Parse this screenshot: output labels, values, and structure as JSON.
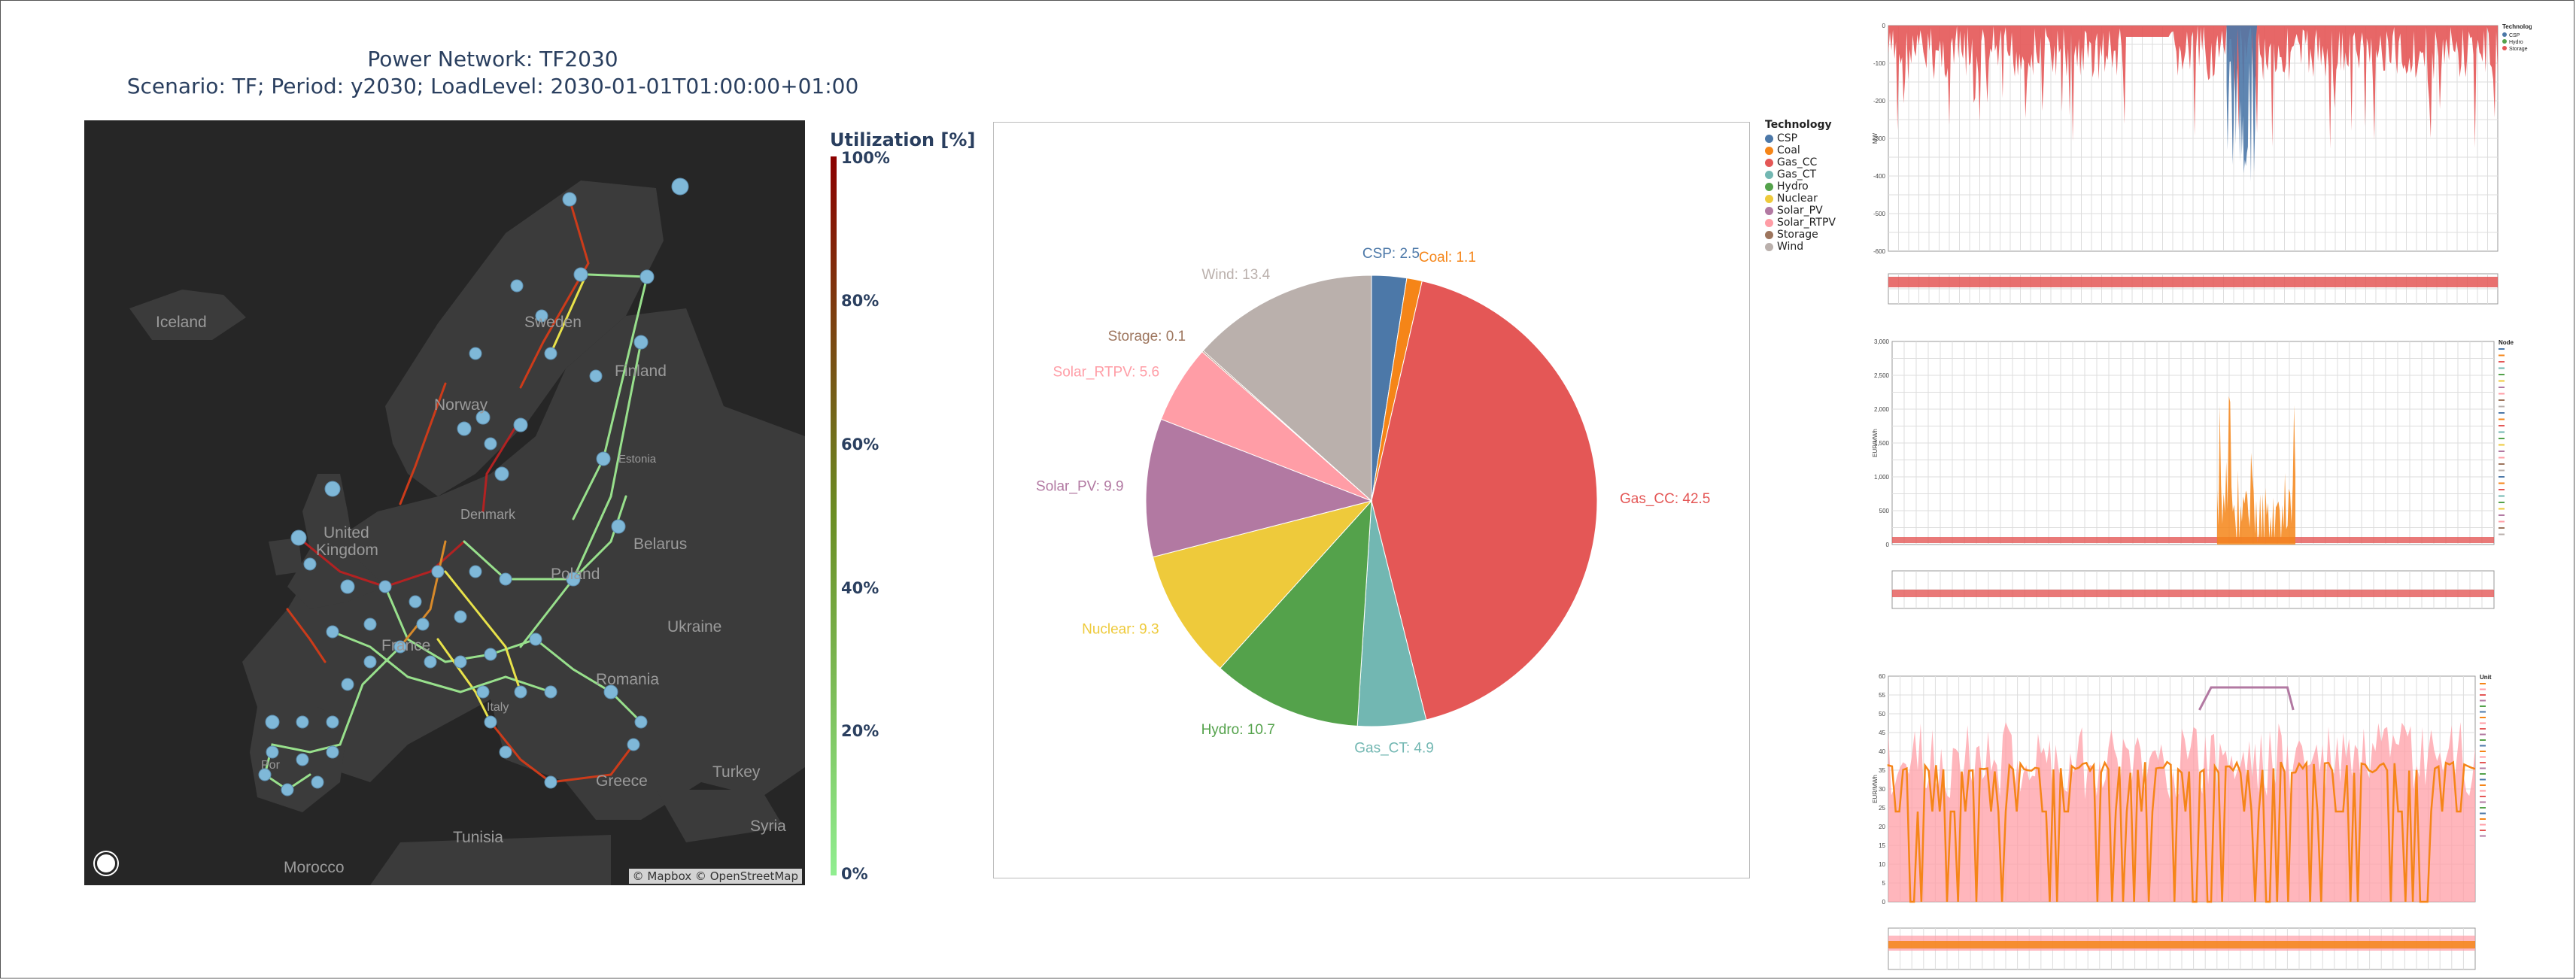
{
  "header": {
    "title_line1": "Power Network: TF2030",
    "title_line2": "Scenario: TF; Period: y2030; LoadLevel: 2030-01-01T01:00:00+01:00"
  },
  "map": {
    "attribution": "© Mapbox © OpenStreetMap",
    "labels": [
      {
        "id": "iceland",
        "text": "Iceland"
      },
      {
        "id": "sweden",
        "text": "Sweden"
      },
      {
        "id": "finland",
        "text": "Finland"
      },
      {
        "id": "norway",
        "text": "Norway"
      },
      {
        "id": "estonia",
        "text": "Estonia"
      },
      {
        "id": "denmark",
        "text": "Denmark"
      },
      {
        "id": "united",
        "text": "United"
      },
      {
        "id": "kingdom",
        "text": "Kingdom"
      },
      {
        "id": "belarus",
        "text": "Belarus"
      },
      {
        "id": "poland",
        "text": "Poland"
      },
      {
        "id": "ukraine",
        "text": "Ukraine"
      },
      {
        "id": "france",
        "text": "France"
      },
      {
        "id": "romania",
        "text": "Romania"
      },
      {
        "id": "portugal",
        "text": "Por"
      },
      {
        "id": "italy",
        "text": "Italy"
      },
      {
        "id": "turkey",
        "text": "Turkey"
      },
      {
        "id": "greece",
        "text": "Greece"
      },
      {
        "id": "tunisia",
        "text": "Tunisia"
      },
      {
        "id": "syria",
        "text": "Syria"
      },
      {
        "id": "morocco",
        "text": "Morocco"
      }
    ]
  },
  "colorbar": {
    "title": "Utilization [%]",
    "ticks": [
      "100%",
      "80%",
      "60%",
      "40%",
      "20%",
      "0%"
    ],
    "color_low": "#90ee90",
    "color_mid": "#6b8e23",
    "color_high": "#8b0000"
  },
  "chart_data": [
    {
      "type": "pie",
      "categories": [
        "CSP",
        "Coal",
        "Gas_CC",
        "Gas_CT",
        "Hydro",
        "Nuclear",
        "Solar_PV",
        "Solar_RTPV",
        "Storage",
        "Wind"
      ],
      "values": [
        2.5,
        1.1,
        42.5,
        4.9,
        10.7,
        9.3,
        9.9,
        5.6,
        0.1,
        13.4
      ],
      "labels": [
        "CSP: 2.5",
        "Coal: 1.1",
        "Gas_CC: 42.5",
        "Gas_CT: 4.9",
        "Hydro: 10.7",
        "Nuclear: 9.3",
        "Solar_PV: 9.9",
        "Solar_RTPV: 5.6",
        "Storage: 0.1",
        "Wind: 13.4"
      ],
      "colors": [
        "#4c78a8",
        "#f58518",
        "#e45756",
        "#72b7b2",
        "#54a24b",
        "#eeca3b",
        "#b279a2",
        "#ff9da6",
        "#9d755d",
        "#bab0ac"
      ],
      "legend_title": "Technology"
    },
    {
      "type": "area",
      "legend_title": "Technology",
      "legend": [
        "CSP",
        "Hydro",
        "Storage"
      ],
      "colors": [
        "#4c78a8",
        "#54a24b",
        "#e45756"
      ],
      "ylabel": "MW",
      "ylim": [
        -600,
        0
      ],
      "yticks": [
        "0",
        "-100",
        "-200",
        "-300",
        "-400",
        "-500",
        "-600"
      ]
    },
    {
      "type": "area",
      "legend_title": "Node",
      "ylabel": "EUR/MWh",
      "ylim": [
        0,
        3000
      ],
      "yticks": [
        "3,000",
        "2,500",
        "2,000",
        "1,500",
        "1,000",
        "500",
        "0"
      ]
    },
    {
      "type": "line",
      "legend_title": "Unit",
      "ylabel": "EUR/MWh",
      "ylim": [
        0,
        60
      ],
      "yticks": [
        "60",
        "55",
        "50",
        "45",
        "40",
        "35",
        "30",
        "25",
        "20",
        "15",
        "10",
        "5",
        "0"
      ]
    }
  ]
}
